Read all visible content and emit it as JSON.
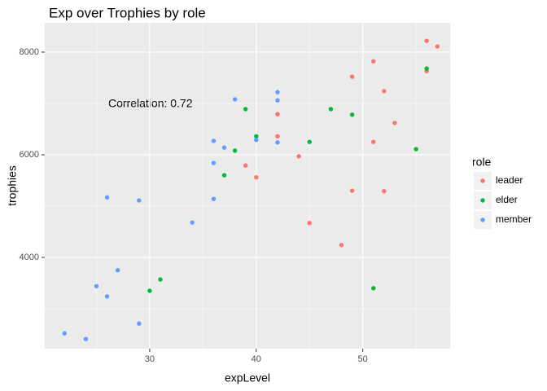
{
  "chart_data": {
    "type": "scatter",
    "title": "Exp over Trophies by role",
    "x_label": "expLevel",
    "y_label": "trophies",
    "legend_title": "role",
    "annotation": "Correlation: 0.72",
    "xlim": [
      20.15,
      58.2
    ],
    "xticks": [
      30,
      40,
      50
    ],
    "ylim": [
      2222,
      8571
    ],
    "yticks": [
      4000,
      6000,
      8000
    ],
    "grid": true,
    "legend": "right",
    "series": [
      {
        "name": "leader",
        "color": "#F8766D",
        "x": [
          56,
          57,
          51,
          56,
          49,
          52,
          42,
          53,
          42,
          51,
          44,
          39,
          40,
          49,
          52,
          45,
          48
        ],
        "y": [
          8220,
          8110,
          7820,
          7630,
          7520,
          7240,
          6790,
          6620,
          6360,
          6250,
          5970,
          5790,
          5560,
          5300,
          5290,
          4670,
          4240
        ]
      },
      {
        "name": "elder",
        "color": "#00BA38",
        "x": [
          56,
          39,
          47,
          49,
          40,
          45,
          55,
          38,
          37,
          31,
          30,
          51
        ],
        "y": [
          7680,
          6890,
          6890,
          6780,
          6360,
          6250,
          6110,
          6080,
          5600,
          3570,
          3350,
          3400
        ]
      },
      {
        "name": "member",
        "color": "#619CFF",
        "x": [
          42,
          38,
          42,
          40,
          36,
          42,
          37,
          36,
          26,
          29,
          36,
          34,
          27,
          25,
          26,
          29,
          22,
          24
        ],
        "y": [
          7220,
          7080,
          7060,
          6290,
          6270,
          6240,
          6140,
          5840,
          5170,
          5110,
          5140,
          4680,
          3750,
          3440,
          3240,
          2710,
          2520,
          2410
        ]
      }
    ]
  }
}
